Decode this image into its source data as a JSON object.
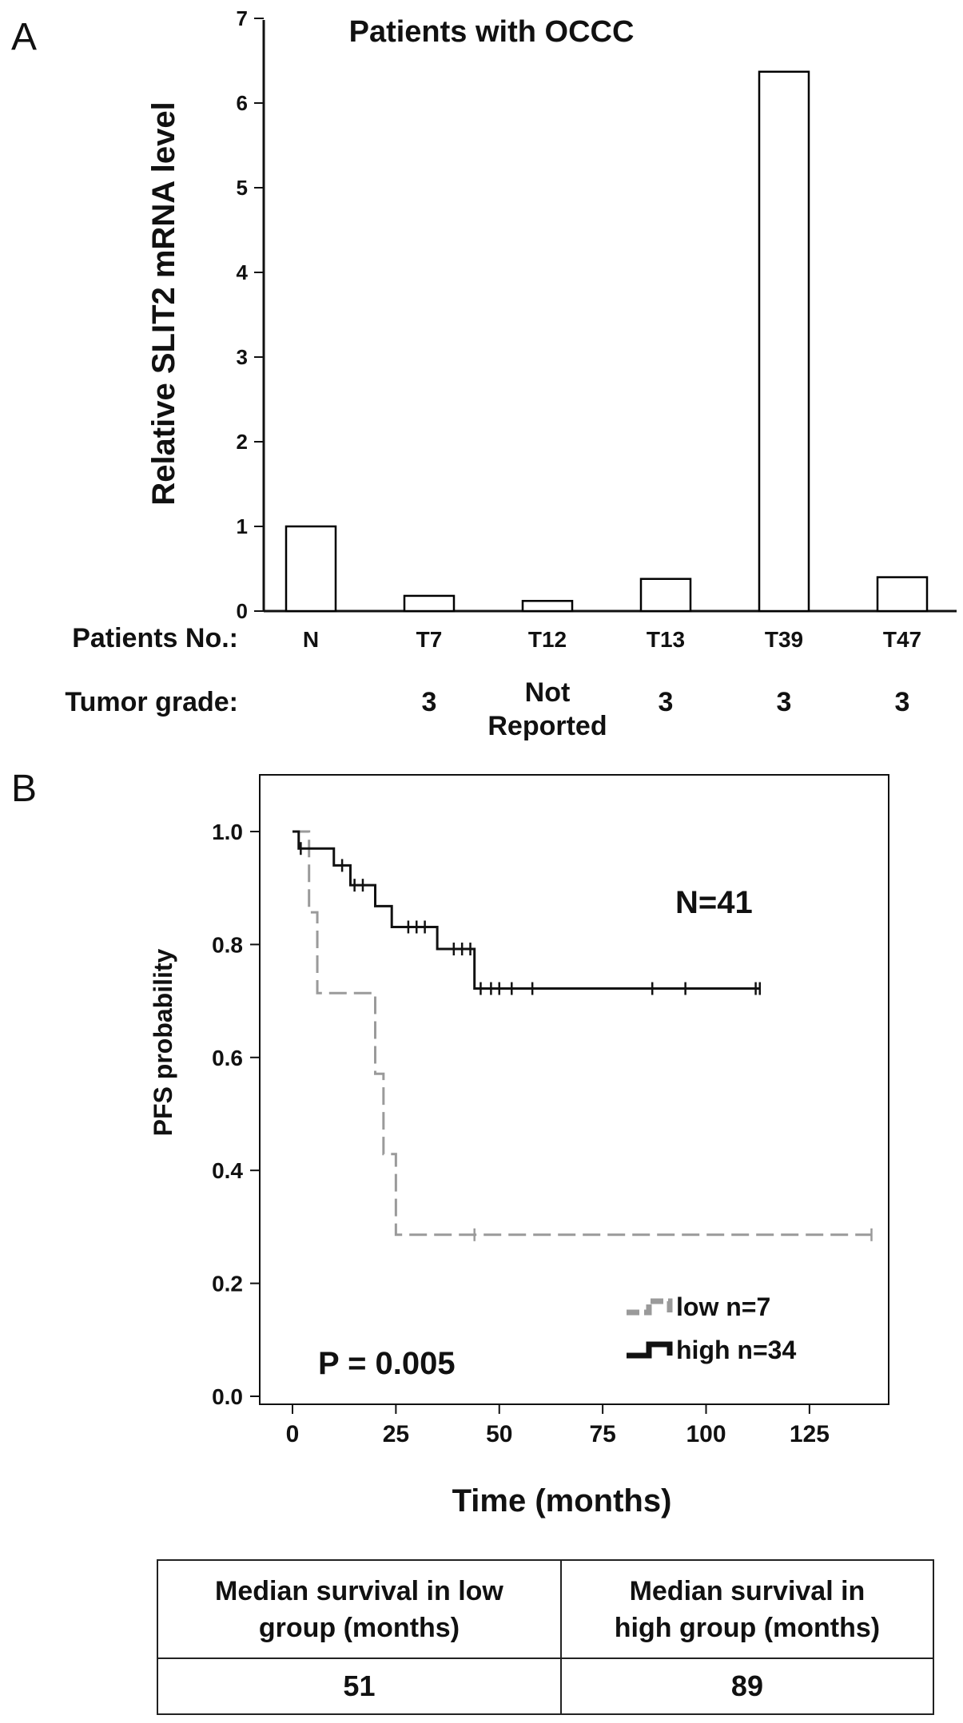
{
  "panel_labels": {
    "a": "A",
    "b": "B"
  },
  "panel_a": {
    "rows": {
      "patients_label": "Patients No.:",
      "grade_label": "Tumor grade:"
    },
    "tumor_grades": [
      "",
      "3",
      "Not\nReported",
      "3",
      "3",
      "3"
    ]
  },
  "panel_b": {
    "annotations": {
      "n_total": "N=41",
      "p_value": "P = 0.005"
    }
  },
  "chart_data": [
    {
      "type": "bar",
      "title": "Patients with OCCC",
      "xlabel": "Patients No.:",
      "ylabel": "Relative SLIT2 mRNA level",
      "categories": [
        "N",
        "T7",
        "T12",
        "T13",
        "T39",
        "T47"
      ],
      "values": [
        1.0,
        0.18,
        0.12,
        0.38,
        6.37,
        0.4
      ],
      "ylim": [
        0,
        7
      ],
      "yticks": [
        0,
        1,
        2,
        3,
        4,
        5,
        6,
        7
      ],
      "grid": false,
      "colors": {
        "bar_fill": "#ffffff",
        "bar_stroke": "#000000"
      }
    },
    {
      "type": "line",
      "subtype": "kaplan-meier",
      "xlabel": "Time (months)",
      "ylabel": "PFS probability",
      "xlim": [
        -8,
        140
      ],
      "ylim": [
        -0.06,
        1.06
      ],
      "xticks": [
        0,
        25,
        50,
        75,
        100,
        125
      ],
      "yticks": [
        0.0,
        0.2,
        0.4,
        0.6,
        0.8,
        1.0
      ],
      "ytick_labels": [
        "0.0",
        "0.2",
        "0.4",
        "0.6",
        "0.8",
        "1.0"
      ],
      "grid": false,
      "legend_position": "bottom-right",
      "series": [
        {
          "name": "low n=7",
          "color": "#9a9a9a",
          "dashed": true,
          "steps": [
            [
              0,
              1.0
            ],
            [
              4,
              0.857
            ],
            [
              6,
              0.714
            ],
            [
              20,
              0.571
            ],
            [
              22,
              0.429
            ],
            [
              25,
              0.286
            ]
          ],
          "end": 140,
          "censored": [
            [
              44,
              0.286
            ],
            [
              140,
              0.286
            ]
          ]
        },
        {
          "name": "high n=34",
          "color": "#111111",
          "dashed": false,
          "steps": [
            [
              0,
              1.0
            ],
            [
              1.5,
              0.97
            ],
            [
              10,
              0.94
            ],
            [
              14,
              0.905
            ],
            [
              20,
              0.868
            ],
            [
              24,
              0.831
            ],
            [
              35,
              0.792
            ],
            [
              44,
              0.722
            ]
          ],
          "end": 113,
          "censored": [
            [
              2,
              0.97
            ],
            [
              12,
              0.94
            ],
            [
              15,
              0.905
            ],
            [
              17,
              0.905
            ],
            [
              28,
              0.831
            ],
            [
              30,
              0.831
            ],
            [
              32,
              0.831
            ],
            [
              39,
              0.792
            ],
            [
              41,
              0.792
            ],
            [
              43,
              0.792
            ],
            [
              45.5,
              0.722
            ],
            [
              48,
              0.722
            ],
            [
              50,
              0.722
            ],
            [
              53,
              0.722
            ],
            [
              58,
              0.722
            ],
            [
              87,
              0.722
            ],
            [
              95,
              0.722
            ],
            [
              112,
              0.722
            ],
            [
              113,
              0.722
            ]
          ]
        }
      ]
    }
  ],
  "summary_table": {
    "headers": [
      "Median survival in low\ngroup (months)",
      "Median survival in\nhigh group (months)"
    ],
    "values": [
      "51",
      "89"
    ]
  }
}
